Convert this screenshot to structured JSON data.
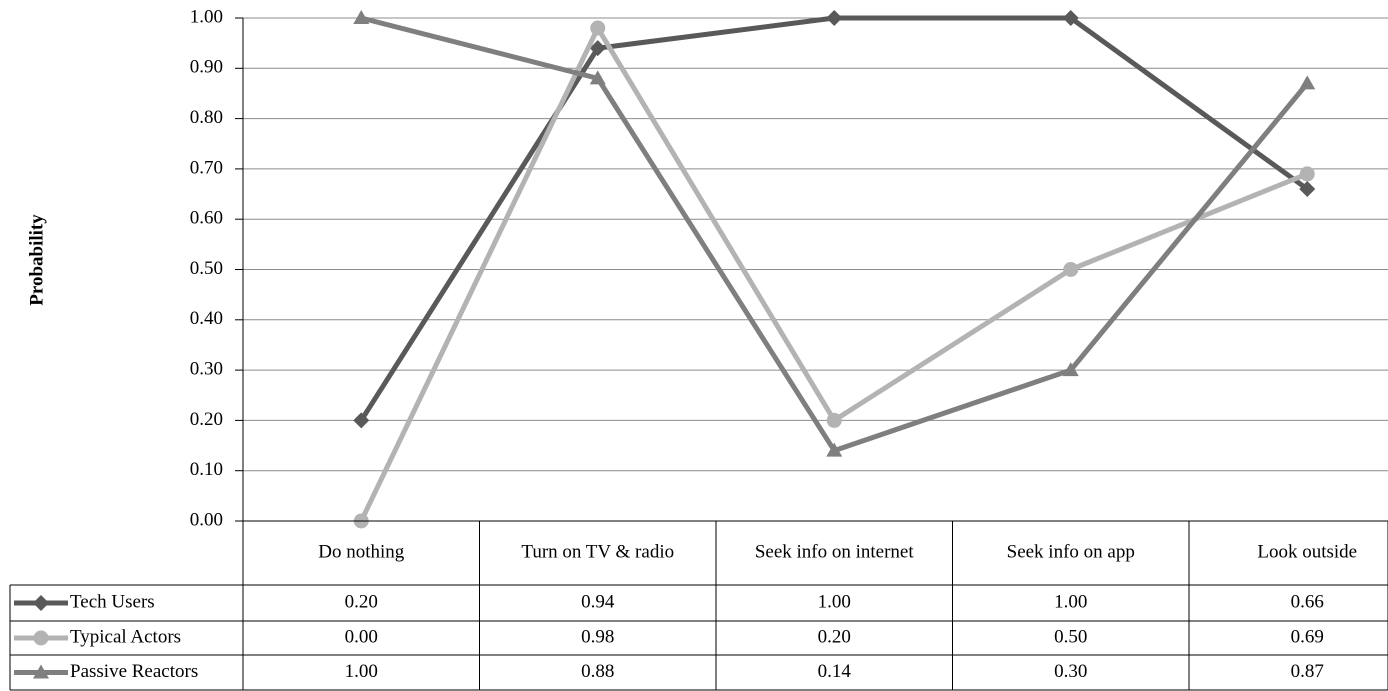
{
  "chart_data": {
    "type": "line",
    "y_label": "Probability",
    "categories": [
      "Do nothing",
      "Turn on TV & radio",
      "Seek info on internet",
      "Seek info on app",
      "Look outside"
    ],
    "ylim": [
      0,
      1
    ],
    "yticks": [
      {
        "value": 0,
        "label": "0.00"
      },
      {
        "value": 0.1,
        "label": "0.10"
      },
      {
        "value": 0.2,
        "label": "0.20"
      },
      {
        "value": 0.3,
        "label": "0.30"
      },
      {
        "value": 0.4,
        "label": "0.40"
      },
      {
        "value": 0.5,
        "label": "0.50"
      },
      {
        "value": 0.6,
        "label": "0.60"
      },
      {
        "value": 0.7,
        "label": "0.70"
      },
      {
        "value": 0.8,
        "label": "0.80"
      },
      {
        "value": 0.9,
        "label": "0.90"
      },
      {
        "value": 1,
        "label": "1.00"
      }
    ],
    "grid": true,
    "series": [
      {
        "name": "Tech Users",
        "color": "#595959",
        "marker": "diamond",
        "values": [
          0.2,
          0.94,
          1,
          1,
          0.66
        ],
        "value_labels": [
          "0.20",
          "0.94",
          "1.00",
          "1.00",
          "0.66"
        ]
      },
      {
        "name": "Typical Actors",
        "color": "#b3b3b3",
        "marker": "circle",
        "values": [
          0,
          0.98,
          0.2,
          0.5,
          0.69
        ],
        "value_labels": [
          "0.00",
          "0.98",
          "0.20",
          "0.50",
          "0.69"
        ]
      },
      {
        "name": "Passive Reactors",
        "color": "#7f7f7f",
        "marker": "triangle",
        "values": [
          1,
          0.88,
          0.14,
          0.3,
          0.87
        ],
        "value_labels": [
          "1.00",
          "0.88",
          "0.14",
          "0.30",
          "0.87"
        ]
      }
    ]
  }
}
